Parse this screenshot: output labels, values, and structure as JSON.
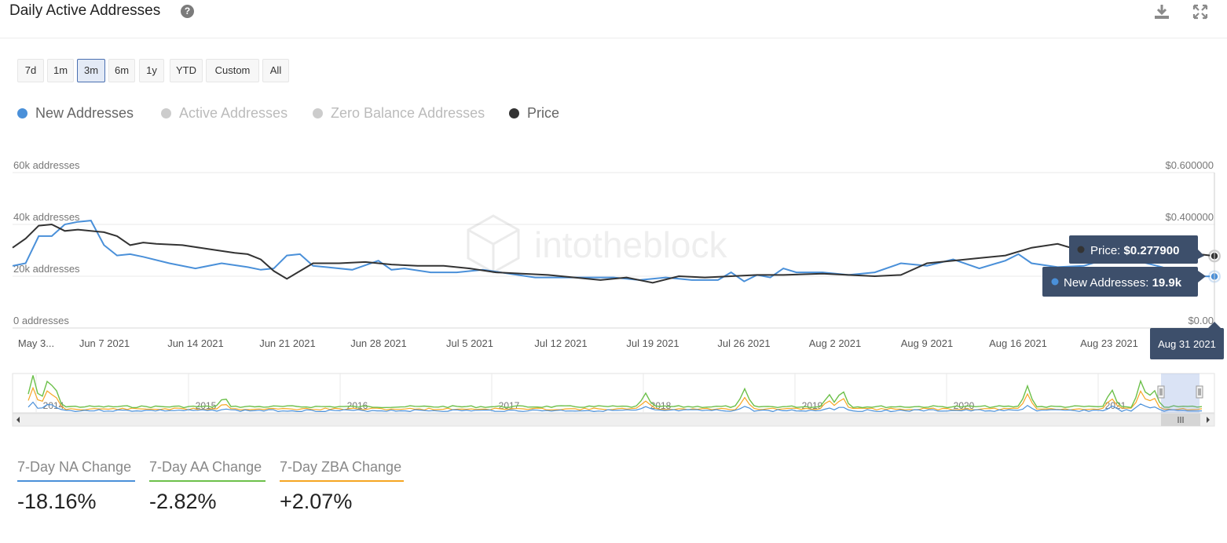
{
  "header": {
    "title": "Daily Active Addresses",
    "help_icon": "question-circle-icon",
    "download_icon": "download-icon",
    "expand_icon": "expand-icon"
  },
  "ranges": [
    {
      "label": "7d",
      "active": false
    },
    {
      "label": "1m",
      "active": false
    },
    {
      "label": "3m",
      "active": true
    },
    {
      "label": "6m",
      "active": false
    },
    {
      "label": "1y",
      "active": false
    },
    {
      "label": "YTD",
      "active": false
    },
    {
      "label": "Custom",
      "active": false
    },
    {
      "label": "All",
      "active": false
    }
  ],
  "legend": [
    {
      "name": "New Addresses",
      "color": "#4a90d9",
      "enabled": true
    },
    {
      "name": "Active Addresses",
      "color": "#cccccc",
      "enabled": false
    },
    {
      "name": "Zero Balance Addresses",
      "color": "#cccccc",
      "enabled": false
    },
    {
      "name": "Price",
      "color": "#333333",
      "enabled": true
    }
  ],
  "watermark": "intotheblock",
  "tooltip": {
    "price_label": "Price: ",
    "price_value": "$0.277900",
    "na_label": "New Addresses: ",
    "na_value": "19.9k",
    "date": "Aug 31 2021"
  },
  "chart_data": {
    "type": "line",
    "x_labels": [
      "May 3...",
      "Jun 7 2021",
      "Jun 14 2021",
      "Jun 21 2021",
      "Jun 28 2021",
      "Jul 5 2021",
      "Jul 12 2021",
      "Jul 19 2021",
      "Jul 26 2021",
      "Aug 2 2021",
      "Aug 9 2021",
      "Aug 16 2021",
      "Aug 23 2021"
    ],
    "y_left_ticks": [
      "60k addresses",
      "40k addresses",
      "20k addresses",
      "0 addresses"
    ],
    "y_left_values": [
      60000,
      40000,
      20000,
      0
    ],
    "y_right_ticks": [
      "$0.600000",
      "$0.400000",
      "$0.00"
    ],
    "y_right_values": [
      0.6,
      0.4,
      0.0
    ],
    "y_left_range": [
      0,
      60000
    ],
    "y_right_range": [
      0,
      0.6
    ],
    "x_range": [
      "2021-05-31",
      "2021-08-31"
    ],
    "series": [
      {
        "name": "New Addresses",
        "axis": "left",
        "color": "#4a90d9",
        "x": [
          "2021-05-31",
          "2021-06-01",
          "2021-06-02",
          "2021-06-03",
          "2021-06-04",
          "2021-06-05",
          "2021-06-06",
          "2021-06-07",
          "2021-06-08",
          "2021-06-09",
          "2021-06-10",
          "2021-06-12",
          "2021-06-14",
          "2021-06-16",
          "2021-06-18",
          "2021-06-19",
          "2021-06-20",
          "2021-06-21",
          "2021-06-22",
          "2021-06-23",
          "2021-06-24",
          "2021-06-26",
          "2021-06-28",
          "2021-06-29",
          "2021-06-30",
          "2021-07-02",
          "2021-07-04",
          "2021-07-06",
          "2021-07-08",
          "2021-07-10",
          "2021-07-12",
          "2021-07-14",
          "2021-07-16",
          "2021-07-18",
          "2021-07-20",
          "2021-07-22",
          "2021-07-24",
          "2021-07-25",
          "2021-07-26",
          "2021-07-27",
          "2021-07-28",
          "2021-07-29",
          "2021-07-30",
          "2021-08-01",
          "2021-08-03",
          "2021-08-05",
          "2021-08-07",
          "2021-08-09",
          "2021-08-11",
          "2021-08-13",
          "2021-08-15",
          "2021-08-16",
          "2021-08-17",
          "2021-08-19",
          "2021-08-21",
          "2021-08-23",
          "2021-08-25",
          "2021-08-27",
          "2021-08-29",
          "2021-08-31"
        ],
        "values": [
          24000,
          25000,
          35500,
          35500,
          40000,
          41000,
          41500,
          32000,
          28000,
          28500,
          27500,
          25000,
          23000,
          25000,
          23500,
          22500,
          23000,
          28000,
          28500,
          24000,
          23500,
          22500,
          26000,
          22500,
          23000,
          21500,
          21500,
          22500,
          21000,
          19500,
          19500,
          19500,
          19500,
          18500,
          19500,
          18500,
          18500,
          21500,
          18000,
          20500,
          19500,
          23000,
          21500,
          21500,
          20500,
          21500,
          25000,
          24000,
          26500,
          23000,
          26000,
          28500,
          25000,
          23500,
          24000,
          27000,
          26000,
          23500,
          20000,
          19900
        ]
      },
      {
        "name": "Price",
        "axis": "right",
        "color": "#333333",
        "x": [
          "2021-05-31",
          "2021-06-01",
          "2021-06-02",
          "2021-06-03",
          "2021-06-04",
          "2021-06-05",
          "2021-06-07",
          "2021-06-08",
          "2021-06-09",
          "2021-06-10",
          "2021-06-11",
          "2021-06-13",
          "2021-06-15",
          "2021-06-17",
          "2021-06-18",
          "2021-06-19",
          "2021-06-20",
          "2021-06-21",
          "2021-06-23",
          "2021-06-25",
          "2021-06-27",
          "2021-06-29",
          "2021-07-01",
          "2021-07-03",
          "2021-07-05",
          "2021-07-07",
          "2021-07-09",
          "2021-07-11",
          "2021-07-13",
          "2021-07-15",
          "2021-07-17",
          "2021-07-19",
          "2021-07-21",
          "2021-07-23",
          "2021-07-25",
          "2021-07-27",
          "2021-07-29",
          "2021-08-01",
          "2021-08-03",
          "2021-08-05",
          "2021-08-07",
          "2021-08-09",
          "2021-08-11",
          "2021-08-13",
          "2021-08-15",
          "2021-08-17",
          "2021-08-19",
          "2021-08-21",
          "2021-08-23",
          "2021-08-25",
          "2021-08-27",
          "2021-08-29",
          "2021-08-31"
        ],
        "values": [
          0.31,
          0.345,
          0.395,
          0.4,
          0.375,
          0.38,
          0.37,
          0.355,
          0.32,
          0.33,
          0.325,
          0.32,
          0.305,
          0.29,
          0.285,
          0.265,
          0.22,
          0.19,
          0.25,
          0.25,
          0.255,
          0.245,
          0.24,
          0.24,
          0.23,
          0.215,
          0.21,
          0.205,
          0.195,
          0.185,
          0.195,
          0.175,
          0.2,
          0.195,
          0.2,
          0.205,
          0.205,
          0.21,
          0.205,
          0.2,
          0.205,
          0.25,
          0.26,
          0.27,
          0.28,
          0.31,
          0.325,
          0.295,
          0.3,
          0.33,
          0.305,
          0.29,
          0.2779
        ]
      }
    ],
    "navigator": {
      "x_labels": [
        "2014",
        "2015",
        "2016",
        "2017",
        "2018",
        "2019",
        "2020",
        "2021"
      ]
    }
  },
  "stats": [
    {
      "label": "7-Day NA Change",
      "value": "-18.16%",
      "color": "#4a90d9"
    },
    {
      "label": "7-Day AA Change",
      "value": "-2.82%",
      "color": "#6cc04a"
    },
    {
      "label": "7-Day ZBA Change",
      "value": "+2.07%",
      "color": "#f5a623"
    }
  ]
}
